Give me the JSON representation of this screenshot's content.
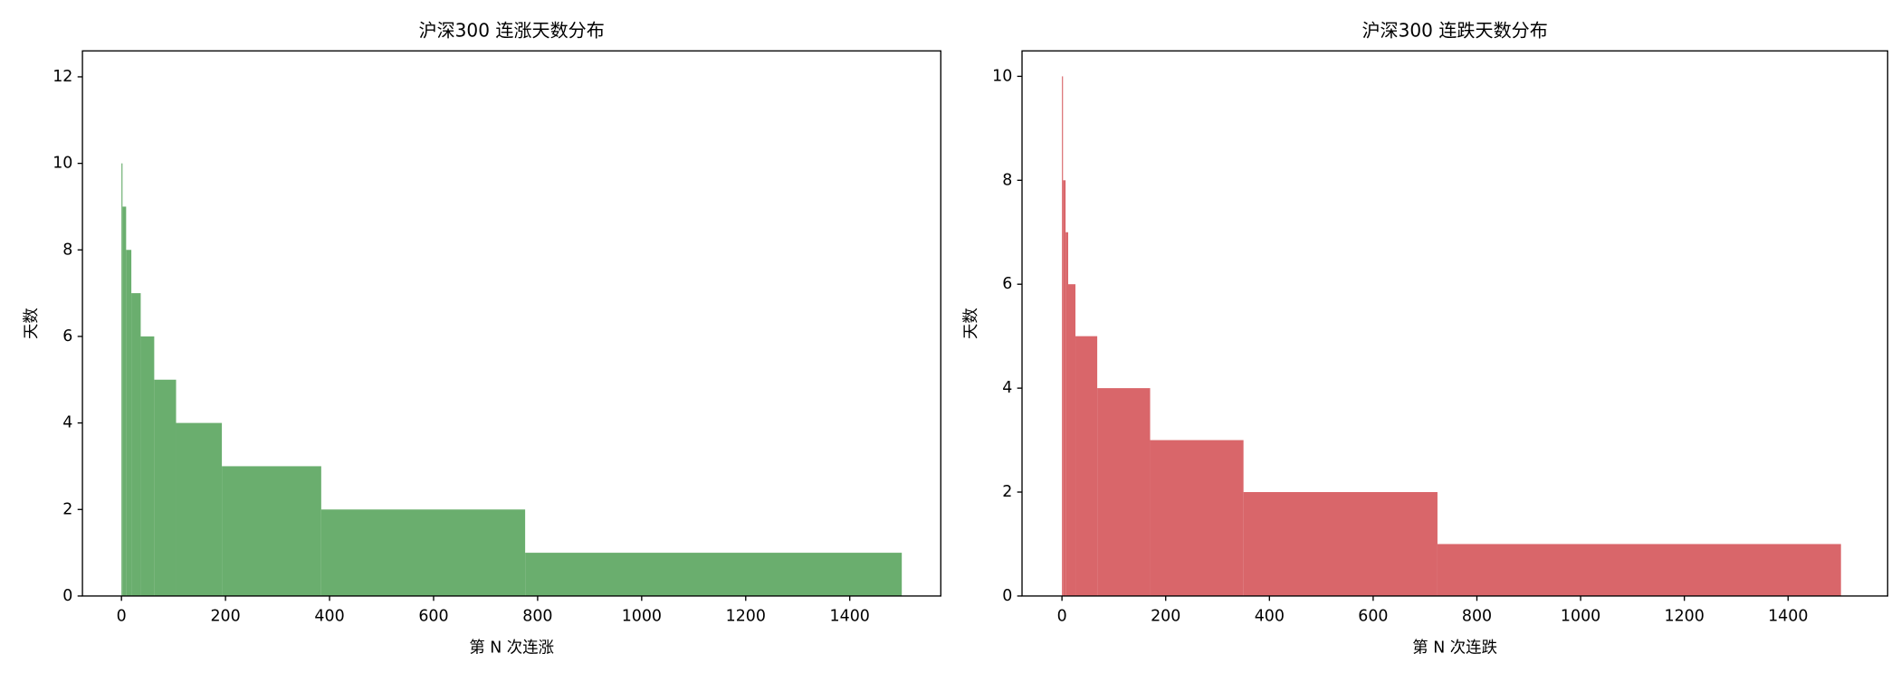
{
  "chart_data": [
    {
      "type": "histogram",
      "title": "沪深300 连涨天数分布",
      "xlabel": "第 N 次连涨",
      "ylabel": "天数",
      "bins": [
        0,
        2,
        9,
        19,
        37,
        63,
        105,
        193,
        384,
        776,
        1500
      ],
      "values": [
        10,
        9,
        8,
        7,
        6,
        5,
        4,
        3,
        2,
        1
      ],
      "color": "#6aae6e",
      "xlim": [
        -75,
        1575
      ],
      "ylim": [
        0,
        12.6
      ],
      "xticks": [
        0,
        200,
        400,
        600,
        800,
        1000,
        1200,
        1400
      ],
      "yticks": [
        0,
        2,
        4,
        6,
        8,
        10,
        12
      ]
    },
    {
      "type": "histogram",
      "title": "沪深300 连跌天数分布",
      "xlabel": "第 N 次连跌",
      "ylabel": "天数",
      "bins": [
        0,
        2,
        7,
        12,
        26,
        68,
        170,
        350,
        724,
        1502
      ],
      "values": [
        10,
        8,
        7,
        6,
        5,
        4,
        3,
        2,
        1
      ],
      "color": "#d9666a",
      "xlim": [
        -77,
        1592
      ],
      "ylim": [
        0,
        10.49
      ],
      "xticks": [
        0,
        200,
        400,
        600,
        800,
        1000,
        1200,
        1400
      ],
      "yticks": [
        0,
        2,
        4,
        6,
        8,
        10
      ]
    }
  ]
}
